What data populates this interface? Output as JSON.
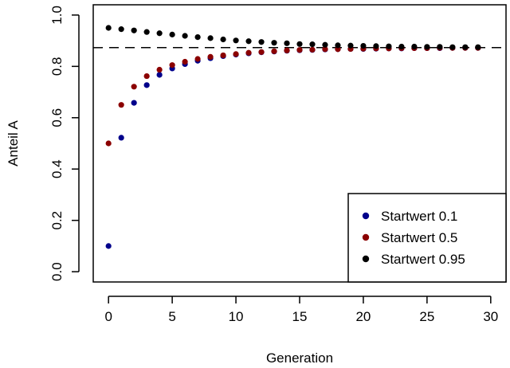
{
  "chart_data": {
    "type": "scatter",
    "xlabel": "Generation",
    "ylabel": "Anteil A",
    "xlim": [
      -1.2,
      31.2
    ],
    "ylim": [
      -0.04,
      1.04
    ],
    "x_ticks": [
      0,
      5,
      10,
      15,
      20,
      25,
      30
    ],
    "x_tick_labels": [
      "0",
      "5",
      "10",
      "15",
      "20",
      "25",
      "30"
    ],
    "y_ticks": [
      0.0,
      0.2,
      0.4,
      0.6,
      0.8,
      1.0
    ],
    "y_tick_labels": [
      "0.0",
      "0.2",
      "0.4",
      "0.6",
      "0.8",
      "1.0"
    ],
    "reference_line": {
      "y": 0.873,
      "style": "dashed",
      "color": "#000000"
    },
    "legend_position": "bottom-right",
    "x": [
      0,
      1,
      2,
      3,
      4,
      5,
      6,
      7,
      8,
      9,
      10,
      11,
      12,
      13,
      14,
      15,
      16,
      17,
      18,
      19,
      20,
      21,
      22,
      23,
      24,
      25,
      26,
      27,
      28,
      29
    ],
    "series": [
      {
        "name": "Startwert 0.1",
        "color": "#00008B",
        "values": [
          0.1,
          0.522,
          0.658,
          0.727,
          0.767,
          0.792,
          0.809,
          0.822,
          0.832,
          0.84,
          0.846,
          0.851,
          0.855,
          0.858,
          0.861,
          0.863,
          0.864,
          0.866,
          0.867,
          0.868,
          0.868,
          0.869,
          0.87,
          0.87,
          0.871,
          0.871,
          0.871,
          0.872,
          0.872,
          0.872
        ]
      },
      {
        "name": "Startwert 0.5",
        "color": "#8B0000",
        "values": [
          0.5,
          0.65,
          0.721,
          0.762,
          0.787,
          0.805,
          0.818,
          0.829,
          0.837,
          0.843,
          0.848,
          0.853,
          0.856,
          0.859,
          0.862,
          0.864,
          0.865,
          0.867,
          0.867,
          0.868,
          0.869,
          0.87,
          0.87,
          0.871,
          0.871,
          0.871,
          0.872,
          0.872,
          0.872,
          0.872
        ]
      },
      {
        "name": "Startwert 0.95",
        "color": "#000000",
        "values": [
          0.95,
          0.945,
          0.94,
          0.934,
          0.929,
          0.924,
          0.919,
          0.914,
          0.91,
          0.905,
          0.901,
          0.898,
          0.895,
          0.892,
          0.89,
          0.887,
          0.886,
          0.884,
          0.882,
          0.881,
          0.88,
          0.879,
          0.878,
          0.877,
          0.877,
          0.876,
          0.876,
          0.875,
          0.875,
          0.875
        ]
      }
    ]
  }
}
